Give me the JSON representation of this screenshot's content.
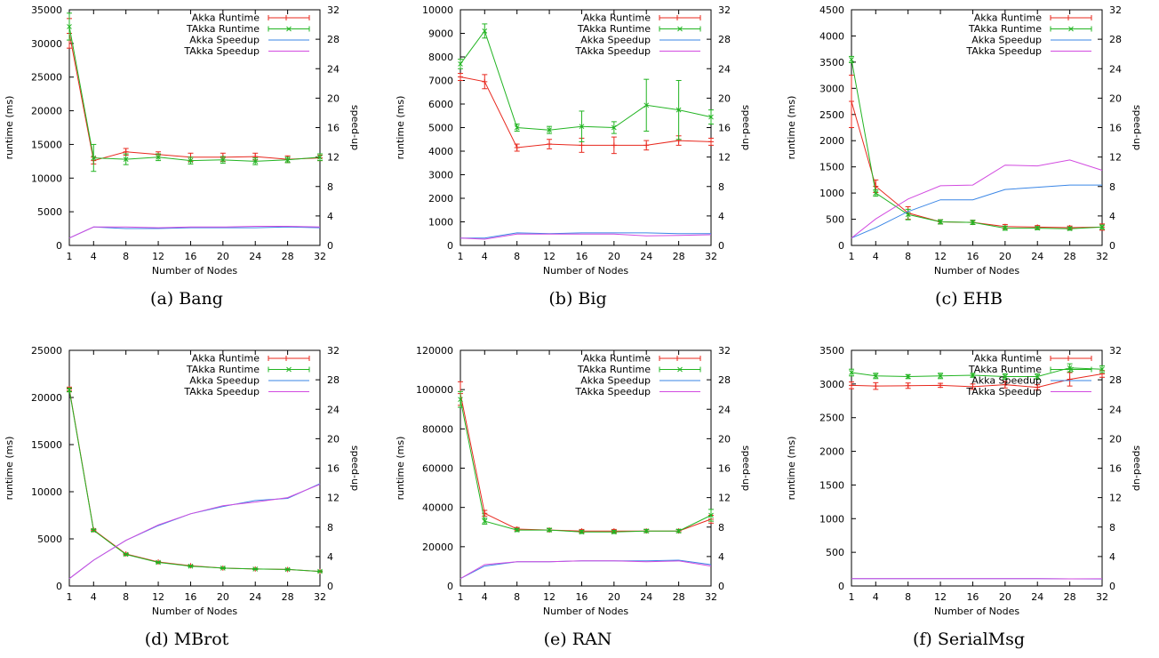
{
  "legend_labels": [
    "Akka Runtime",
    "TAkka Runtime",
    "Akka Speedup",
    "TAkka Speedup"
  ],
  "colors": {
    "akka_runtime": "#e8281e",
    "takka_runtime": "#22b422",
    "akka_speedup": "#3a86e6",
    "takka_speedup": "#d24be0"
  },
  "chart_data": [
    {
      "type": "line",
      "caption": "(a) Bang",
      "xlabel": "Number of Nodes",
      "ylabel": "runtime (ms)",
      "y2label": "speed-up",
      "x": [
        1,
        4,
        8,
        12,
        16,
        20,
        24,
        28,
        32
      ],
      "ylim": [
        0,
        35000
      ],
      "yticks": [
        0,
        5000,
        10000,
        15000,
        20000,
        25000,
        30000,
        35000
      ],
      "y2lim": [
        0,
        32
      ],
      "y2ticks": [
        0,
        4,
        8,
        12,
        16,
        20,
        24,
        28,
        32
      ],
      "series": [
        {
          "name": "Akka Runtime",
          "axis": "left",
          "marker": "plus",
          "values": [
            31500,
            12600,
            13900,
            13500,
            13100,
            13100,
            13200,
            12800,
            13000
          ],
          "err": [
            2200,
            500,
            500,
            400,
            600,
            600,
            500,
            500,
            400
          ]
        },
        {
          "name": "TAkka Runtime",
          "axis": "left",
          "marker": "x",
          "values": [
            32500,
            13000,
            12800,
            13100,
            12600,
            12700,
            12500,
            12700,
            13100
          ],
          "err": [
            2000,
            2000,
            800,
            500,
            500,
            500,
            500,
            400,
            500
          ]
        },
        {
          "name": "Akka Speedup",
          "axis": "right",
          "values": [
            1.0,
            2.5,
            2.3,
            2.3,
            2.4,
            2.4,
            2.4,
            2.5,
            2.4
          ]
        },
        {
          "name": "TAkka Speedup",
          "axis": "right",
          "values": [
            1.0,
            2.5,
            2.5,
            2.4,
            2.5,
            2.5,
            2.6,
            2.6,
            2.5
          ]
        }
      ]
    },
    {
      "type": "line",
      "caption": "(b) Big",
      "xlabel": "Number of Nodes",
      "ylabel": "runtime (ms)",
      "y2label": "speed-up",
      "x": [
        1,
        4,
        8,
        12,
        16,
        20,
        24,
        28,
        32
      ],
      "ylim": [
        0,
        10000
      ],
      "yticks": [
        0,
        1000,
        2000,
        3000,
        4000,
        5000,
        6000,
        7000,
        8000,
        9000,
        10000
      ],
      "y2lim": [
        0,
        32
      ],
      "y2ticks": [
        0,
        4,
        8,
        12,
        16,
        20,
        24,
        28,
        32
      ],
      "series": [
        {
          "name": "Akka Runtime",
          "axis": "left",
          "marker": "plus",
          "values": [
            7150,
            6950,
            4150,
            4300,
            4250,
            4250,
            4250,
            4450,
            4400
          ],
          "err": [
            150,
            300,
            150,
            200,
            300,
            350,
            200,
            200,
            150
          ]
        },
        {
          "name": "TAkka Runtime",
          "axis": "left",
          "marker": "x",
          "values": [
            7700,
            9100,
            5000,
            4900,
            5050,
            5000,
            5950,
            5750,
            5450
          ],
          "err": [
            200,
            300,
            150,
            150,
            650,
            250,
            1100,
            1250,
            300
          ]
        },
        {
          "name": "Akka Speedup",
          "axis": "right",
          "values": [
            1.0,
            1.0,
            1.7,
            1.6,
            1.7,
            1.7,
            1.7,
            1.6,
            1.6
          ]
        },
        {
          "name": "TAkka Speedup",
          "axis": "right",
          "values": [
            1.0,
            0.85,
            1.55,
            1.55,
            1.55,
            1.55,
            1.3,
            1.35,
            1.45
          ]
        }
      ]
    },
    {
      "type": "line",
      "caption": "(c) EHB",
      "xlabel": "Number of Nodes",
      "ylabel": "runtime (ms)",
      "y2label": "speed-up",
      "x": [
        1,
        4,
        8,
        12,
        16,
        20,
        24,
        28,
        32
      ],
      "ylim": [
        0,
        4500
      ],
      "yticks": [
        0,
        500,
        1000,
        1500,
        2000,
        2500,
        3000,
        3500,
        4000,
        4500
      ],
      "y2lim": [
        0,
        32
      ],
      "y2ticks": [
        0,
        4,
        8,
        12,
        16,
        20,
        24,
        28,
        32
      ],
      "series": [
        {
          "name": "Akka Runtime",
          "axis": "left",
          "marker": "plus",
          "values": [
            2750,
            1130,
            620,
            450,
            440,
            360,
            350,
            340,
            350
          ],
          "err": [
            500,
            120,
            120,
            40,
            40,
            40,
            30,
            30,
            60
          ]
        },
        {
          "name": "TAkka Runtime",
          "axis": "left",
          "marker": "x",
          "values": [
            3550,
            1000,
            590,
            450,
            440,
            330,
            330,
            320,
            350
          ],
          "err": [
            60,
            60,
            100,
            40,
            40,
            40,
            30,
            30,
            40
          ]
        },
        {
          "name": "Akka Speedup",
          "axis": "right",
          "values": [
            1.0,
            2.4,
            4.6,
            6.2,
            6.2,
            7.6,
            7.9,
            8.2,
            8.2
          ]
        },
        {
          "name": "TAkka Speedup",
          "axis": "right",
          "values": [
            1.0,
            3.6,
            6.3,
            8.1,
            8.2,
            10.9,
            10.8,
            11.6,
            10.2
          ]
        }
      ]
    },
    {
      "type": "line",
      "caption": "(d) MBrot",
      "xlabel": "Number of Nodes",
      "ylabel": "runtime (ms)",
      "y2label": "speed-up",
      "x": [
        1,
        4,
        8,
        12,
        16,
        20,
        24,
        28,
        32
      ],
      "ylim": [
        0,
        25000
      ],
      "yticks": [
        0,
        5000,
        10000,
        15000,
        20000,
        25000
      ],
      "y2lim": [
        0,
        32
      ],
      "y2ticks": [
        0,
        4,
        8,
        12,
        16,
        20,
        24,
        28,
        32
      ],
      "series": [
        {
          "name": "Akka Runtime",
          "axis": "left",
          "marker": "plus",
          "values": [
            20900,
            5950,
            3400,
            2550,
            2150,
            1900,
            1800,
            1750,
            1550
          ],
          "err": [
            200,
            100,
            80,
            60,
            60,
            60,
            60,
            60,
            60
          ]
        },
        {
          "name": "TAkka Runtime",
          "axis": "left",
          "marker": "x",
          "values": [
            20800,
            5900,
            3350,
            2500,
            2100,
            1900,
            1800,
            1750,
            1550
          ],
          "err": [
            200,
            100,
            80,
            60,
            60,
            60,
            60,
            60,
            60
          ]
        },
        {
          "name": "Akka Speedup",
          "axis": "right",
          "values": [
            1.0,
            3.5,
            6.2,
            8.2,
            9.8,
            10.8,
            11.6,
            11.9,
            13.9
          ]
        },
        {
          "name": "TAkka Speedup",
          "axis": "right",
          "values": [
            1.0,
            3.5,
            6.2,
            8.3,
            9.8,
            10.9,
            11.4,
            12.0,
            13.8
          ]
        }
      ]
    },
    {
      "type": "line",
      "caption": "(e) RAN",
      "xlabel": "Number of Nodes",
      "ylabel": "runtime (ms)",
      "y2label": "speed-up",
      "x": [
        1,
        4,
        8,
        12,
        16,
        20,
        24,
        28,
        32
      ],
      "ylim": [
        0,
        120000
      ],
      "yticks": [
        0,
        20000,
        40000,
        60000,
        80000,
        100000,
        120000
      ],
      "y2lim": [
        0,
        32
      ],
      "y2ticks": [
        0,
        4,
        8,
        12,
        16,
        20,
        24,
        28,
        32
      ],
      "series": [
        {
          "name": "Akka Runtime",
          "axis": "left",
          "marker": "plus",
          "values": [
            98000,
            37000,
            29000,
            28500,
            28000,
            28000,
            28000,
            28000,
            34000
          ],
          "err": [
            6000,
            1500,
            800,
            800,
            800,
            800,
            800,
            800,
            2000
          ]
        },
        {
          "name": "TAkka Runtime",
          "axis": "left",
          "marker": "x",
          "values": [
            95000,
            33000,
            28500,
            28500,
            27500,
            27500,
            28000,
            28000,
            36000
          ],
          "err": [
            4000,
            1500,
            800,
            800,
            800,
            800,
            800,
            800,
            3000
          ]
        },
        {
          "name": "Akka Speedup",
          "axis": "right",
          "values": [
            1.0,
            2.7,
            3.3,
            3.3,
            3.4,
            3.4,
            3.4,
            3.5,
            2.9
          ]
        },
        {
          "name": "TAkka Speedup",
          "axis": "right",
          "values": [
            1.0,
            2.9,
            3.3,
            3.3,
            3.4,
            3.4,
            3.3,
            3.4,
            2.7
          ]
        }
      ]
    },
    {
      "type": "line",
      "caption": "(f) SerialMsg",
      "xlabel": "Number of Nodes",
      "ylabel": "runtime (ms)",
      "y2label": "speed-up",
      "x": [
        1,
        4,
        8,
        12,
        16,
        20,
        24,
        28,
        32
      ],
      "ylim": [
        0,
        3500
      ],
      "yticks": [
        0,
        500,
        1000,
        1500,
        2000,
        2500,
        3000,
        3500
      ],
      "y2lim": [
        0,
        32
      ],
      "y2ticks": [
        0,
        4,
        8,
        12,
        16,
        20,
        24,
        28,
        32
      ],
      "series": [
        {
          "name": "Akka Runtime",
          "axis": "left",
          "marker": "plus",
          "values": [
            2980,
            2970,
            2975,
            2980,
            2960,
            2990,
            2950,
            3070,
            3150
          ],
          "err": [
            50,
            50,
            40,
            30,
            40,
            50,
            40,
            100,
            50
          ]
        },
        {
          "name": "TAkka Runtime",
          "axis": "left",
          "marker": "x",
          "values": [
            3170,
            3120,
            3110,
            3120,
            3130,
            3110,
            3110,
            3240,
            3220
          ],
          "err": [
            50,
            40,
            30,
            40,
            30,
            40,
            40,
            60,
            50
          ]
        },
        {
          "name": "Akka Speedup",
          "axis": "right",
          "values": [
            1.0,
            1.0,
            1.0,
            1.0,
            1.0,
            1.0,
            1.0,
            0.97,
            0.95
          ]
        },
        {
          "name": "TAkka Speedup",
          "axis": "right",
          "values": [
            1.0,
            1.0,
            1.0,
            1.0,
            1.0,
            1.0,
            1.0,
            0.97,
            0.98
          ]
        }
      ]
    }
  ]
}
